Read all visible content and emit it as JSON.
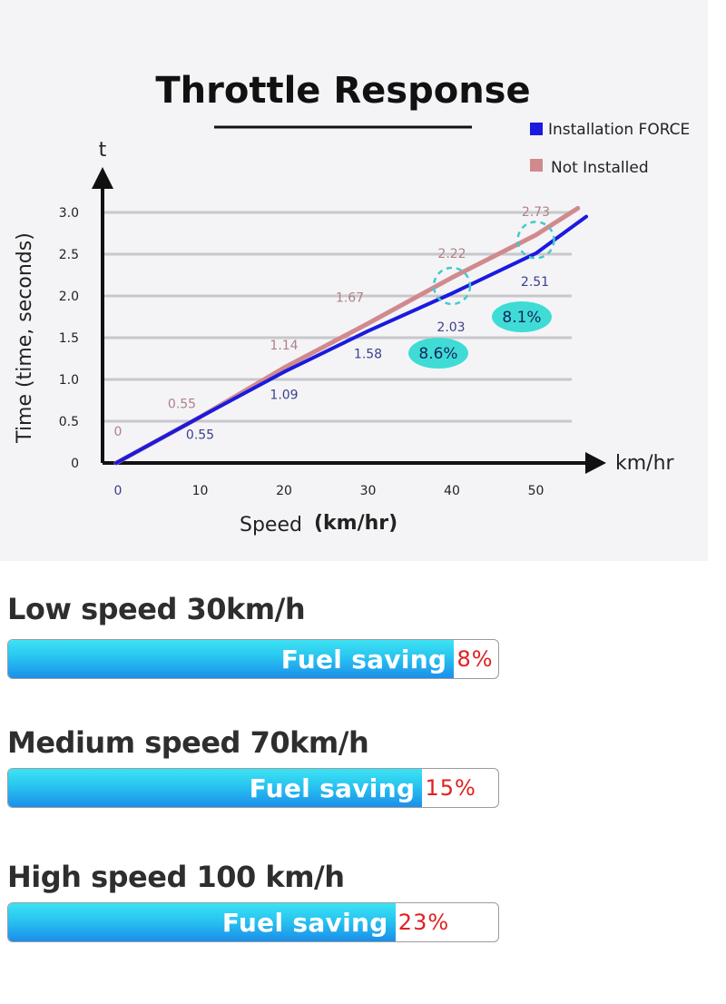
{
  "chart_data": {
    "type": "line",
    "title": "Throttle Response",
    "xlabel": "Speed",
    "xlabel_unit": "(km/hr)",
    "x_axis_end_label": "km/hr",
    "ylabel": "Time (time, seconds)",
    "y_axis_top_label": "t",
    "x": [
      0,
      10,
      20,
      30,
      40,
      50
    ],
    "x_tick_labels": [
      "0",
      "10",
      "20",
      "30",
      "40",
      "50"
    ],
    "y_ticks": [
      0,
      0.5,
      1.0,
      1.5,
      2.0,
      2.5,
      3.0
    ],
    "y_tick_labels": [
      "0",
      "0.5",
      "1.0",
      "1.5",
      "2.0",
      "2.5",
      "3.0"
    ],
    "xlim": [
      0,
      56
    ],
    "ylim": [
      0,
      3.0
    ],
    "grid": true,
    "legend_position": "top-right",
    "series": [
      {
        "name": "Installation FORCE",
        "color": "#1a1ae0",
        "values": [
          0,
          0.55,
          1.09,
          1.58,
          2.03,
          2.51
        ],
        "end_value": 2.95,
        "data_labels": [
          "0",
          "0.55",
          "1.09",
          "1.58",
          "2.03",
          "2.51"
        ]
      },
      {
        "name": "Not Installed",
        "color": "#d08a8e",
        "values": [
          0,
          0.55,
          1.14,
          1.67,
          2.22,
          2.73
        ],
        "end_value": 3.05,
        "data_labels": [
          "0",
          "0.55",
          "1.14",
          "1.67",
          "2.22",
          "2.73"
        ]
      }
    ],
    "annotations": [
      {
        "text": "8.6%",
        "x": 40,
        "type": "badge"
      },
      {
        "text": "8.1%",
        "x": 50,
        "type": "badge"
      }
    ]
  },
  "fuel_savings": [
    {
      "heading": "Low speed 30km/h",
      "bar_label": "Fuel saving",
      "percent_label": "8%",
      "fill_fraction": 0.91
    },
    {
      "heading": "Medium speed 70km/h",
      "bar_label": "Fuel saving",
      "percent_label": "15%",
      "fill_fraction": 0.845
    },
    {
      "heading": "High speed 100 km/h",
      "bar_label": "Fuel saving",
      "percent_label": "23%",
      "fill_fraction": 0.79
    }
  ],
  "colors": {
    "bar_gradient_top": "#3ee3f3",
    "bar_gradient_bottom": "#1b8eea",
    "percent_text": "#e02020",
    "badge": "#3fdcd6"
  }
}
